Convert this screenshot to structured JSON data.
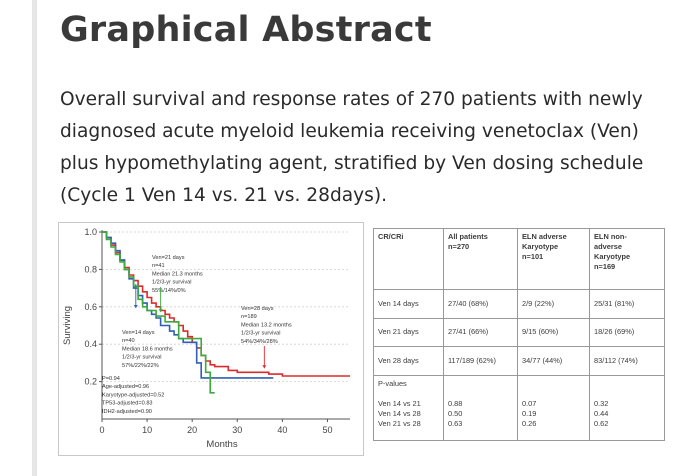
{
  "heading": "Graphical Abstract",
  "description": "Overall survival and response rates of 270 patients with newly diagnosed acute myeloid leukemia receiving venetoclax (Ven) plus hypomethylating agent, stratified by Ven dosing schedule (Cycle 1 Ven 14 vs. 21 vs. 28days).",
  "chart_data": {
    "type": "line",
    "xlabel": "Months",
    "ylabel": "Surviving",
    "xlim": [
      0,
      55
    ],
    "ylim": [
      0,
      1.0
    ],
    "x_ticks": [
      0,
      10,
      20,
      30,
      40,
      50
    ],
    "y_ticks": [
      0.2,
      0.4,
      0.6,
      0.8,
      1.0
    ],
    "x_tick_labels": [
      "0",
      "10",
      "20",
      "30",
      "40",
      "50"
    ],
    "y_tick_labels": [
      "0.2",
      "0.4",
      "0.6",
      "0.8",
      "1.0"
    ],
    "series": [
      {
        "color": "#d92b2b",
        "points": [
          [
            0,
            1.0
          ],
          [
            1,
            0.97
          ],
          [
            2,
            0.93
          ],
          [
            3,
            0.89
          ],
          [
            4,
            0.85
          ],
          [
            5,
            0.81
          ],
          [
            6,
            0.77
          ],
          [
            7,
            0.74
          ],
          [
            8,
            0.71
          ],
          [
            9,
            0.68
          ],
          [
            10,
            0.65
          ],
          [
            11,
            0.62
          ],
          [
            12,
            0.6
          ],
          [
            13,
            0.58
          ],
          [
            14,
            0.56
          ],
          [
            15,
            0.54
          ],
          [
            16,
            0.52
          ],
          [
            17,
            0.5
          ],
          [
            18,
            0.47
          ],
          [
            19,
            0.44
          ],
          [
            20,
            0.41
          ],
          [
            21,
            0.38
          ],
          [
            22,
            0.34
          ],
          [
            23,
            0.31
          ],
          [
            24,
            0.29
          ],
          [
            25,
            0.28
          ],
          [
            28,
            0.26
          ],
          [
            30,
            0.25
          ],
          [
            32,
            0.25
          ],
          [
            37,
            0.24
          ],
          [
            39,
            0.24
          ],
          [
            40,
            0.23
          ],
          [
            55,
            0.23
          ]
        ]
      },
      {
        "color": "#2f5fb3",
        "points": [
          [
            0,
            1.0
          ],
          [
            1,
            0.97
          ],
          [
            2,
            0.94
          ],
          [
            3,
            0.9
          ],
          [
            4,
            0.85
          ],
          [
            5,
            0.8
          ],
          [
            6,
            0.75
          ],
          [
            7,
            0.7
          ],
          [
            8,
            0.66
          ],
          [
            9,
            0.62
          ],
          [
            10,
            0.58
          ],
          [
            11,
            0.56
          ],
          [
            12,
            0.54
          ],
          [
            13,
            0.5
          ],
          [
            15,
            0.47
          ],
          [
            16,
            0.45
          ],
          [
            17,
            0.43
          ],
          [
            18,
            0.41
          ],
          [
            20,
            0.41
          ],
          [
            21,
            0.3
          ],
          [
            22,
            0.22
          ],
          [
            25,
            0.22
          ],
          [
            38,
            0.22
          ]
        ]
      },
      {
        "color": "#3daa3d",
        "points": [
          [
            0,
            1.0
          ],
          [
            1,
            0.96
          ],
          [
            2,
            0.92
          ],
          [
            3,
            0.88
          ],
          [
            4,
            0.84
          ],
          [
            5,
            0.8
          ],
          [
            6,
            0.76
          ],
          [
            7,
            0.71
          ],
          [
            8,
            0.64
          ],
          [
            9,
            0.6
          ],
          [
            10,
            0.58
          ],
          [
            12,
            0.55
          ],
          [
            14,
            0.52
          ],
          [
            16,
            0.52
          ],
          [
            17,
            0.43
          ],
          [
            20,
            0.43
          ],
          [
            22,
            0.34
          ],
          [
            23,
            0.25
          ],
          [
            24,
            0.14
          ],
          [
            25,
            0.14
          ]
        ]
      }
    ],
    "annotations": [
      {
        "lines": [
          "Ven=21 days",
          "n=41",
          "Median 21.3 months",
          "1/2/3-yr survival",
          "55%/14%/0%"
        ]
      },
      {
        "lines": [
          "Ven=28 days",
          "n=189",
          "Median 13.2 months",
          "1/2/3-yr survival",
          "54%/34%/28%"
        ]
      },
      {
        "lines": [
          "Ven=14 days",
          "n=40",
          "Median 18.6 months",
          "1/2/3-yr survival",
          "57%/22%/22%"
        ]
      },
      {
        "lines": [
          "P=0.94",
          "Age-adjusted=0.96",
          "Karyotype-adjusted=0.52",
          "TP53-adjusted=0.83",
          "IDH2-adjusted=0.90"
        ]
      }
    ]
  },
  "table": {
    "headers": [
      [
        "CR/CRi"
      ],
      [
        "All patients",
        "",
        "n=270"
      ],
      [
        "ELN adverse",
        "Karyotype",
        "n=101"
      ],
      [
        "ELN non-",
        "adverse",
        "Karyotype",
        "n=169"
      ]
    ],
    "rows": [
      [
        "Ven 14 days",
        "27/40 (68%)",
        "2/9 (22%)",
        "25/31 (81%)"
      ],
      [
        "Ven 21 days",
        "27/41 (66%)",
        "9/15 (60%)",
        "18/26 (69%)"
      ],
      [
        "Ven 28 days",
        "117/189 (62%)",
        "34/77 (44%)",
        "83/112 (74%)"
      ]
    ],
    "pvalues": {
      "label": "P-values",
      "comparisons": [
        "Ven 14 vs 21",
        "Ven 14 vs 28",
        "Ven 21 vs 28"
      ],
      "all": [
        "0.88",
        "0.50",
        "0.63"
      ],
      "adverse": [
        "0.07",
        "0.19",
        "0.26"
      ],
      "nonadverse": [
        "0.32",
        "0.44",
        "0.62"
      ]
    }
  }
}
